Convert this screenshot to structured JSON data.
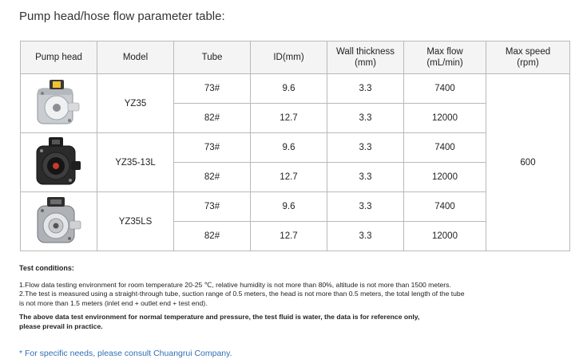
{
  "page": {
    "title": "Pump head/hose flow parameter table:"
  },
  "table": {
    "headers": {
      "pump_head": "Pump head",
      "model": "Model",
      "tube": "Tube",
      "id": "ID(mm)",
      "wall_1": "Wall thickness",
      "wall_2": "(mm)",
      "flow_1": "Max flow",
      "flow_2": "(mL/min)",
      "speed_1": "Max speed",
      "speed_2": "(rpm)"
    },
    "max_speed": "600",
    "groups": [
      {
        "model": "YZ35",
        "image": "pump-head-silver-yellow",
        "rows": [
          {
            "tube": "73#",
            "id": "9.6",
            "wall": "3.3",
            "flow": "7400"
          },
          {
            "tube": "82#",
            "id": "12.7",
            "wall": "3.3",
            "flow": "12000"
          }
        ]
      },
      {
        "model": "YZ35-13L",
        "image": "pump-head-black-red",
        "rows": [
          {
            "tube": "73#",
            "id": "9.6",
            "wall": "3.3",
            "flow": "7400"
          },
          {
            "tube": "82#",
            "id": "12.7",
            "wall": "3.3",
            "flow": "12000"
          }
        ]
      },
      {
        "model": "YZ35LS",
        "image": "pump-head-gray-silver",
        "rows": [
          {
            "tube": "73#",
            "id": "9.6",
            "wall": "3.3",
            "flow": "7400"
          },
          {
            "tube": "82#",
            "id": "12.7",
            "wall": "3.3",
            "flow": "12000"
          }
        ]
      }
    ]
  },
  "notes": {
    "heading": "Test conditions:",
    "line1": "1.Flow data testing environment for room temperature 20-25 ℃, relative humidity is not more than 80%, altitude is not more than 1500 meters.",
    "line2a": "2.The test is measured using a straight-through tube, suction range of 0.5 meters, the head is not more than 0.5 meters, the total length of the tube",
    "line2b": "is not more than 1.5 meters (inlet end + outlet end + test end).",
    "bold1": "The above data test environment for normal temperature and pressure, the test fluid is water, the data is for reference only,",
    "bold2": "please prevail in practice."
  },
  "footnote": "* For specific needs, please consult Chuangrui Company.",
  "colors": {
    "footnote": "#2f6fb5",
    "grid": "#b9b9b9",
    "header_bg": "#f4f4f4"
  }
}
